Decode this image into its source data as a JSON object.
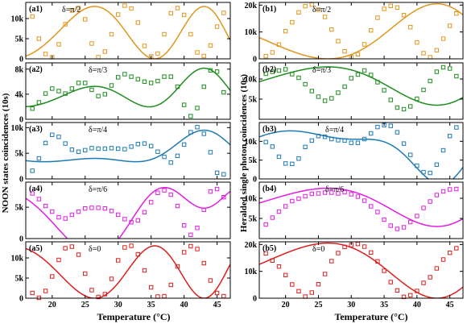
{
  "figure": {
    "ylabel_left": "NOON states coincidences (10s)",
    "ylabel_right": "Heralded single photon coincidences (10s)",
    "xlabel_left": "Temperature (°C)",
    "xlabel_right": "Temperature (°C)"
  },
  "chart_data": [
    {
      "id": "a1",
      "type": "scatter",
      "label": "(a1)",
      "delta": "δ=π/2",
      "color": "#E0961E",
      "xlim": [
        16,
        47
      ],
      "ylim": [
        0,
        14000
      ],
      "xticks": [
        20,
        25,
        30,
        35,
        40,
        45
      ],
      "yticks": [
        0,
        5000,
        10000
      ],
      "ytick_labels": [
        "0",
        "5k",
        "10k"
      ],
      "show_xticklabels": false,
      "curve": {
        "A": 6500,
        "B": 6500,
        "f0": 0.21,
        "p": 0.0045,
        "phi": 3.6
      },
      "x": [
        17,
        18,
        19,
        20,
        21,
        22,
        23,
        24,
        25,
        26,
        27,
        28,
        29,
        30,
        31,
        32,
        33,
        34,
        35,
        36,
        37,
        38,
        39,
        40,
        41,
        42,
        43,
        44,
        45,
        46
      ],
      "y": [
        10500,
        5000,
        1200,
        400,
        3600,
        8600,
        12000,
        12600,
        9800,
        3800,
        400,
        1800,
        6100,
        11000,
        13200,
        12500,
        9000,
        3200,
        600,
        1300,
        6100,
        11300,
        12600,
        10900,
        6100,
        1600,
        700,
        3300,
        8000,
        11400
      ]
    },
    {
      "id": "a2",
      "type": "scatter",
      "label": "(a2)",
      "delta": "δ=π/3",
      "color": "#1E8C1E",
      "xlim": [
        16,
        47
      ],
      "ylim": [
        0,
        9000
      ],
      "xticks": [
        20,
        25,
        30,
        35,
        40,
        45
      ],
      "yticks": [
        0,
        4000,
        8000
      ],
      "ytick_labels": [
        "0",
        "4k",
        "8k"
      ],
      "show_xticklabels": false,
      "curve": {
        "A": 2300,
        "B": 4400,
        "C": 1450,
        "f0": 0.21,
        "p": 0.0045,
        "phi": 3.6,
        "g0": 0.105,
        "q": 0.00225,
        "psi": 1.8
      },
      "x": [
        17,
        18,
        19,
        20,
        21,
        22,
        23,
        24,
        25,
        26,
        27,
        28,
        29,
        30,
        31,
        32,
        33,
        34,
        35,
        36,
        37,
        38,
        39,
        40,
        41,
        42,
        43,
        44,
        45,
        46
      ],
      "y": [
        1700,
        2700,
        4100,
        4900,
        4500,
        4100,
        4900,
        5800,
        5800,
        4700,
        3700,
        4000,
        5400,
        6700,
        7200,
        6800,
        6400,
        6000,
        5800,
        6100,
        6800,
        6800,
        5200,
        2300,
        500,
        1800,
        5200,
        7800,
        7600,
        4300
      ]
    },
    {
      "id": "a3",
      "type": "scatter",
      "label": "(a3)",
      "delta": "δ=π/4",
      "color": "#1E7AB4",
      "xlim": [
        16,
        47
      ],
      "ylim": [
        0,
        11000
      ],
      "xticks": [
        20,
        25,
        30,
        35,
        40,
        45
      ],
      "yticks": [
        0,
        5000,
        10000
      ],
      "ytick_labels": [
        "0",
        "5k",
        "10k"
      ],
      "show_xticklabels": false,
      "curve": {
        "A": 1350,
        "B": 5400,
        "C": 2750,
        "f0": 0.21,
        "p": 0.0045,
        "phi": 3.6,
        "g0": 0.105,
        "q": 0.00225,
        "psi": 1.8
      },
      "x": [
        17,
        18,
        19,
        20,
        21,
        22,
        23,
        24,
        25,
        26,
        27,
        28,
        29,
        30,
        31,
        32,
        33,
        34,
        35,
        36,
        37,
        38,
        39,
        40,
        41,
        42,
        43,
        44,
        45,
        46
      ],
      "y": [
        1600,
        4000,
        7000,
        8600,
        8200,
        6900,
        5700,
        5300,
        5600,
        6000,
        5900,
        5900,
        6000,
        5900,
        5800,
        6300,
        6800,
        6900,
        6400,
        5300,
        4300,
        3200,
        4500,
        6700,
        9100,
        10100,
        8800,
        5200,
        1200,
        900
      ]
    },
    {
      "id": "a4",
      "type": "scatter",
      "label": "(a4)",
      "delta": "δ=π/6",
      "color": "#E11EE1",
      "xlim": [
        16,
        47
      ],
      "ylim": [
        0,
        9000
      ],
      "xticks": [
        20,
        25,
        30,
        35,
        40,
        45
      ],
      "yticks": [
        0,
        5000
      ],
      "ytick_labels": [
        "0",
        "5k"
      ],
      "show_xticklabels": false,
      "curve": {
        "A": -3250,
        "B": 4350,
        "C": 3750,
        "f0": 0.21,
        "p": 0.0045,
        "phi": 3.6,
        "g0": 0.105,
        "q": 0.00225,
        "psi": 1.8
      },
      "x": [
        17,
        18,
        19,
        20,
        21,
        22,
        23,
        24,
        25,
        26,
        27,
        28,
        29,
        30,
        31,
        32,
        33,
        34,
        35,
        36,
        37,
        38,
        39,
        40,
        41,
        42,
        43,
        44,
        45,
        46
      ],
      "y": [
        7200,
        6300,
        5200,
        4300,
        3400,
        3200,
        3800,
        4300,
        4800,
        4900,
        4900,
        4800,
        4400,
        3800,
        3100,
        2600,
        2900,
        4200,
        5800,
        7300,
        7700,
        7000,
        5200,
        2100,
        600,
        1700,
        4600,
        7500,
        7900,
        6600
      ]
    },
    {
      "id": "a5",
      "type": "scatter",
      "label": "(a5)",
      "delta": "δ=0",
      "color": "#DC1E1E",
      "xlim": [
        16,
        47
      ],
      "ylim": [
        0,
        14000
      ],
      "xticks": [
        20,
        25,
        30,
        35,
        40,
        45
      ],
      "yticks": [
        0,
        5000,
        10000
      ],
      "ytick_labels": [
        "0",
        "5k",
        "10k"
      ],
      "show_xticklabels": true,
      "curve": {
        "A": -6500,
        "B": 6500,
        "f0": 0.21,
        "p": 0.0045,
        "phi": 3.6
      },
      "x": [
        17,
        18,
        19,
        20,
        21,
        22,
        23,
        24,
        25,
        26,
        27,
        28,
        29,
        30,
        31,
        32,
        33,
        34,
        35,
        36,
        37,
        38,
        39,
        40,
        41,
        42,
        43,
        44,
        45,
        46
      ],
      "y": [
        1300,
        100,
        1800,
        5400,
        9500,
        12400,
        12800,
        10800,
        6100,
        2000,
        300,
        1000,
        4800,
        9400,
        12600,
        13000,
        10900,
        6900,
        2700,
        400,
        500,
        3300,
        7900,
        11400,
        12900,
        12200,
        8700,
        4400,
        1300,
        500
      ]
    },
    {
      "id": "b1",
      "type": "scatter",
      "label": "(b1)",
      "delta": "δ=π/2",
      "color": "#E0961E",
      "xlim": [
        16,
        47
      ],
      "ylim": [
        0,
        21000
      ],
      "xticks": [
        20,
        25,
        30,
        35,
        40,
        45
      ],
      "yticks": [
        0,
        10000,
        20000
      ],
      "ytick_labels": [
        "0",
        "10k",
        "20k"
      ],
      "show_xticklabels": false,
      "curve": {
        "C": 10250,
        "B": 10250,
        "g0": 0.105,
        "q": 0.00225,
        "psi": 1.8
      },
      "x": [
        17,
        18,
        19,
        20,
        21,
        22,
        23,
        24,
        25,
        26,
        27,
        28,
        29,
        30,
        31,
        32,
        33,
        34,
        35,
        36,
        37,
        38,
        39,
        40,
        41,
        42,
        43,
        44,
        45,
        46
      ],
      "y": [
        1000,
        2400,
        5300,
        10300,
        13600,
        17300,
        19600,
        20200,
        18300,
        15600,
        10900,
        6600,
        2800,
        700,
        1700,
        5400,
        10600,
        15300,
        18600,
        19700,
        19100,
        16300,
        11800,
        6100,
        2100,
        600,
        3200,
        7500,
        12300,
        16900
      ]
    },
    {
      "id": "b2",
      "type": "scatter",
      "label": "(b2)",
      "delta": "δ=π/3",
      "color": "#1E8C1E",
      "xlim": [
        16,
        47
      ],
      "ylim": [
        0,
        14000
      ],
      "xticks": [
        20,
        25,
        30,
        35,
        40,
        45
      ],
      "yticks": [
        5000,
        10000
      ],
      "ytick_labels": [
        "5k",
        "10k"
      ],
      "show_xticklabels": false,
      "curve": {
        "C": -4750,
        "B": 8250,
        "g0": 0.105,
        "q": 0.00225,
        "psi": 1.8
      },
      "x": [
        17,
        18,
        19,
        20,
        21,
        22,
        23,
        24,
        25,
        26,
        27,
        28,
        29,
        30,
        31,
        32,
        33,
        34,
        35,
        36,
        37,
        38,
        39,
        40,
        41,
        42,
        43,
        44,
        45,
        46
      ],
      "y": [
        11300,
        11800,
        12100,
        12400,
        11200,
        10300,
        8700,
        7000,
        5600,
        4600,
        5200,
        6600,
        8100,
        10200,
        11100,
        12100,
        11000,
        9200,
        7200,
        4800,
        2900,
        2500,
        3200,
        5100,
        7300,
        9500,
        11800,
        12900,
        12600,
        10700
      ]
    },
    {
      "id": "b3",
      "type": "scatter",
      "label": "(b3)",
      "delta": "δ=π/4",
      "color": "#1E7AB4",
      "xlim": [
        16,
        47
      ],
      "ylim": [
        0,
        15000
      ],
      "xticks": [
        20,
        25,
        30,
        35,
        40,
        45
      ],
      "yticks": [
        0,
        5000,
        10000
      ],
      "ytick_labels": [
        "0",
        "5k",
        "10k"
      ],
      "show_xticklabels": false,
      "curve": {
        "C": -6250,
        "B": 7250,
        "A": 2500,
        "f0": 0.21,
        "p": 0.0045,
        "phi": 0.0,
        "g0": 0.105,
        "q": 0.00225,
        "psi": 1.8
      },
      "x": [
        17,
        18,
        19,
        20,
        21,
        22,
        23,
        24,
        25,
        26,
        27,
        28,
        29,
        30,
        31,
        32,
        33,
        34,
        35,
        36,
        37,
        38,
        39,
        40,
        41,
        42,
        43,
        44,
        45,
        46
      ],
      "y": [
        9800,
        8600,
        5900,
        4100,
        4000,
        5400,
        8500,
        10200,
        11400,
        11200,
        10600,
        10300,
        10200,
        9600,
        9600,
        10600,
        12100,
        13800,
        14300,
        14100,
        12400,
        9400,
        6400,
        3500,
        1800,
        1600,
        3800,
        7600,
        11400,
        13700
      ]
    },
    {
      "id": "b4",
      "type": "scatter",
      "label": "(b4)",
      "delta": "δ=π/6",
      "color": "#E11EE1",
      "xlim": [
        16,
        47
      ],
      "ylim": [
        0,
        14000
      ],
      "xticks": [
        20,
        25,
        30,
        35,
        40,
        45
      ],
      "yticks": [
        5000,
        10000
      ],
      "ytick_labels": [
        "5k",
        "10k"
      ],
      "show_xticklabels": false,
      "curve": {
        "C": -4750,
        "B": 7750,
        "g0": 0.105,
        "q": 0.00225,
        "psi": 1.8
      },
      "x": [
        17,
        18,
        19,
        20,
        21,
        22,
        23,
        24,
        25,
        26,
        27,
        28,
        29,
        30,
        31,
        32,
        33,
        34,
        35,
        36,
        37,
        38,
        39,
        40,
        41,
        42,
        43,
        44,
        45,
        46
      ],
      "y": [
        3500,
        5200,
        6700,
        8000,
        9300,
        9900,
        10500,
        11100,
        11200,
        11400,
        11400,
        11200,
        11500,
        11000,
        10400,
        9400,
        8000,
        6600,
        4700,
        3200,
        2400,
        2800,
        4100,
        5600,
        7600,
        9200,
        10800,
        11700,
        12200,
        12300
      ]
    },
    {
      "id": "b5",
      "type": "scatter",
      "label": "(b5)",
      "delta": "δ=0",
      "color": "#DC1E1E",
      "xlim": [
        16,
        47
      ],
      "ylim": [
        0,
        21000
      ],
      "xticks": [
        20,
        25,
        30,
        35,
        40,
        45
      ],
      "yticks": [
        0,
        10000,
        20000
      ],
      "ytick_labels": [
        "0",
        "10k",
        "20k"
      ],
      "show_xticklabels": true,
      "curve": {
        "C": -10250,
        "B": 10250,
        "g0": 0.105,
        "q": 0.00225,
        "psi": 1.8
      },
      "x": [
        17,
        18,
        19,
        20,
        21,
        22,
        23,
        24,
        25,
        26,
        27,
        28,
        29,
        30,
        31,
        32,
        33,
        34,
        35,
        36,
        37,
        38,
        39,
        40,
        41,
        42,
        43,
        44,
        45,
        46
      ],
      "y": [
        16700,
        14000,
        11800,
        8600,
        5100,
        2600,
        600,
        2100,
        5200,
        9000,
        13800,
        16800,
        19100,
        19800,
        20200,
        19200,
        17000,
        13700,
        10200,
        6000,
        2900,
        500,
        1100,
        2700,
        5700,
        7800,
        11100,
        14400,
        16900,
        18600
      ]
    }
  ]
}
